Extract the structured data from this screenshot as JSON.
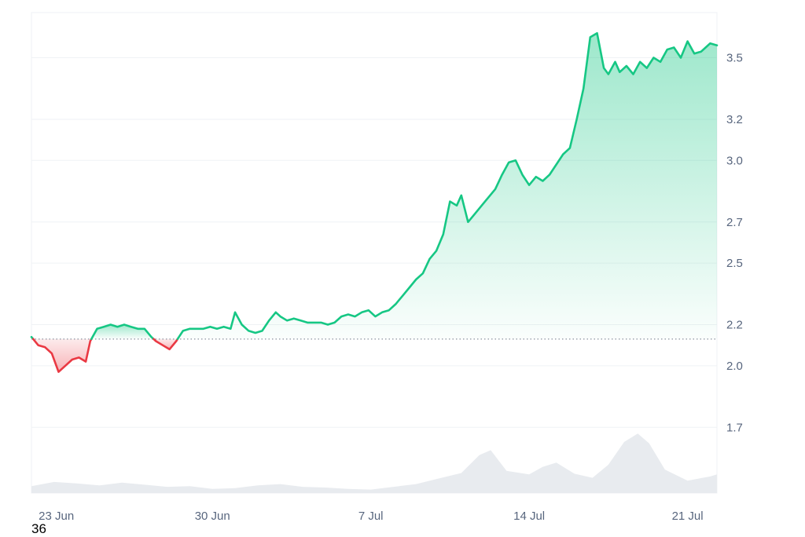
{
  "corner_label": "36",
  "chart_data": {
    "type": "area",
    "baseline": 2.13,
    "ylim": [
      1.38,
      3.72
    ],
    "y_ticks": [
      {
        "value": 1.7,
        "label": "1.7"
      },
      {
        "value": 2.0,
        "label": "2.0"
      },
      {
        "value": 2.2,
        "label": "2.2"
      },
      {
        "value": 2.5,
        "label": "2.5"
      },
      {
        "value": 2.7,
        "label": "2.7"
      },
      {
        "value": 3.0,
        "label": "3.0"
      },
      {
        "value": 3.2,
        "label": "3.2"
      },
      {
        "value": 3.5,
        "label": "3.5"
      }
    ],
    "x_ticks": [
      {
        "x": 1.1,
        "label": "23 Jun"
      },
      {
        "x": 8.0,
        "label": "30 Jun"
      },
      {
        "x": 15.0,
        "label": "7 Jul"
      },
      {
        "x": 22.0,
        "label": "14 Jul"
      },
      {
        "x": 29.0,
        "label": "21 Jul"
      }
    ],
    "xlim": [
      0,
      30.3
    ],
    "grid": true,
    "colors": {
      "up": "#16c784",
      "down": "#ea3943",
      "up_fill": "#16c784",
      "down_fill": "#ea3943",
      "volume": "#e8ebef",
      "grid": "#eff2f5",
      "baseline": "#8a939f"
    },
    "series": [
      {
        "x": [
          0.0,
          0.3,
          0.6,
          0.9,
          1.2,
          1.5,
          1.8,
          2.1,
          2.4,
          2.6,
          2.9,
          3.2,
          3.5,
          3.8,
          4.1,
          4.4,
          4.7,
          5.0,
          5.3,
          5.5,
          5.8,
          6.1,
          6.4,
          6.7,
          7.0,
          7.3,
          7.6,
          7.9,
          8.2,
          8.5,
          8.8,
          9.0,
          9.3,
          9.6,
          9.9,
          10.2,
          10.5,
          10.8,
          11.0,
          11.3,
          11.6,
          11.9,
          12.2,
          12.5,
          12.8,
          13.1,
          13.4,
          13.7,
          14.0,
          14.3,
          14.6,
          14.9,
          15.2,
          15.5,
          15.8,
          16.1,
          16.4,
          16.7,
          17.0,
          17.3,
          17.6,
          17.9,
          18.2,
          18.5,
          18.8,
          19.0,
          19.3,
          19.6,
          19.9,
          20.2,
          20.5,
          20.8,
          21.1,
          21.4,
          21.7,
          22.0,
          22.3,
          22.6,
          22.9,
          23.2,
          23.5,
          23.8,
          24.1,
          24.4,
          24.7,
          25.0,
          25.3,
          25.5,
          25.8,
          26.0,
          26.3,
          26.6,
          26.9,
          27.2,
          27.5,
          27.8,
          28.1,
          28.4,
          28.7,
          29.0,
          29.3,
          29.6,
          29.8,
          30.0,
          30.3
        ],
        "y": [
          2.14,
          2.1,
          2.09,
          2.06,
          1.97,
          2.0,
          2.03,
          2.04,
          2.02,
          2.12,
          2.18,
          2.19,
          2.2,
          2.19,
          2.2,
          2.19,
          2.18,
          2.18,
          2.14,
          2.12,
          2.1,
          2.08,
          2.12,
          2.17,
          2.18,
          2.18,
          2.18,
          2.19,
          2.18,
          2.19,
          2.18,
          2.26,
          2.2,
          2.17,
          2.16,
          2.17,
          2.22,
          2.26,
          2.24,
          2.22,
          2.23,
          2.22,
          2.21,
          2.21,
          2.21,
          2.2,
          2.21,
          2.24,
          2.25,
          2.24,
          2.26,
          2.27,
          2.24,
          2.26,
          2.27,
          2.3,
          2.34,
          2.38,
          2.42,
          2.45,
          2.52,
          2.56,
          2.64,
          2.8,
          2.78,
          2.83,
          2.7,
          2.74,
          2.78,
          2.82,
          2.86,
          2.93,
          2.99,
          3.0,
          2.93,
          2.88,
          2.92,
          2.9,
          2.93,
          2.98,
          3.03,
          3.06,
          3.2,
          3.35,
          3.6,
          3.62,
          3.45,
          3.42,
          3.48,
          3.43,
          3.46,
          3.42,
          3.48,
          3.45,
          3.5,
          3.48,
          3.54,
          3.55,
          3.5,
          3.58,
          3.52,
          3.53,
          3.55,
          3.57,
          3.56
        ]
      },
      {
        "name": "volume",
        "x": [
          0,
          1,
          2,
          3,
          4,
          5,
          6,
          7,
          8,
          9,
          10,
          11,
          12,
          13,
          14,
          15,
          16,
          17,
          18,
          19,
          19.8,
          20.3,
          21,
          22,
          22.6,
          23.2,
          24,
          24.8,
          25.5,
          26.2,
          26.8,
          27.3,
          28,
          29,
          30,
          30.3
        ],
        "values": [
          0.1,
          0.16,
          0.14,
          0.11,
          0.15,
          0.12,
          0.09,
          0.1,
          0.06,
          0.07,
          0.11,
          0.13,
          0.09,
          0.08,
          0.06,
          0.05,
          0.09,
          0.13,
          0.21,
          0.29,
          0.55,
          0.62,
          0.32,
          0.27,
          0.38,
          0.44,
          0.28,
          0.22,
          0.41,
          0.74,
          0.86,
          0.72,
          0.34,
          0.18,
          0.24,
          0.27
        ]
      }
    ]
  }
}
